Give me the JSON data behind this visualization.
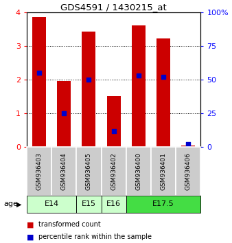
{
  "title": "GDS4591 / 1430215_at",
  "samples": [
    "GSM936403",
    "GSM936404",
    "GSM936405",
    "GSM936402",
    "GSM936400",
    "GSM936401",
    "GSM936406"
  ],
  "red_values": [
    3.85,
    1.95,
    3.42,
    1.52,
    3.6,
    3.22,
    0.05
  ],
  "blue_values": [
    55,
    25,
    50,
    12,
    53,
    52,
    2
  ],
  "ylim_left": [
    0,
    4
  ],
  "ylim_right": [
    0,
    100
  ],
  "age_groups": [
    {
      "label": "E14",
      "span": [
        0,
        2
      ],
      "color": "#ccffcc"
    },
    {
      "label": "E15",
      "span": [
        2,
        3
      ],
      "color": "#ccffcc"
    },
    {
      "label": "E16",
      "span": [
        3,
        4
      ],
      "color": "#ccffcc"
    },
    {
      "label": "E17.5",
      "span": [
        4,
        7
      ],
      "color": "#44dd44"
    }
  ],
  "bar_color": "#cc0000",
  "dot_color": "#0000cc",
  "legend_red": "transformed count",
  "legend_blue": "percentile rank within the sample",
  "background_sample": "#cccccc",
  "background_age_light": "#ccffcc",
  "background_age_dark": "#44dd44"
}
